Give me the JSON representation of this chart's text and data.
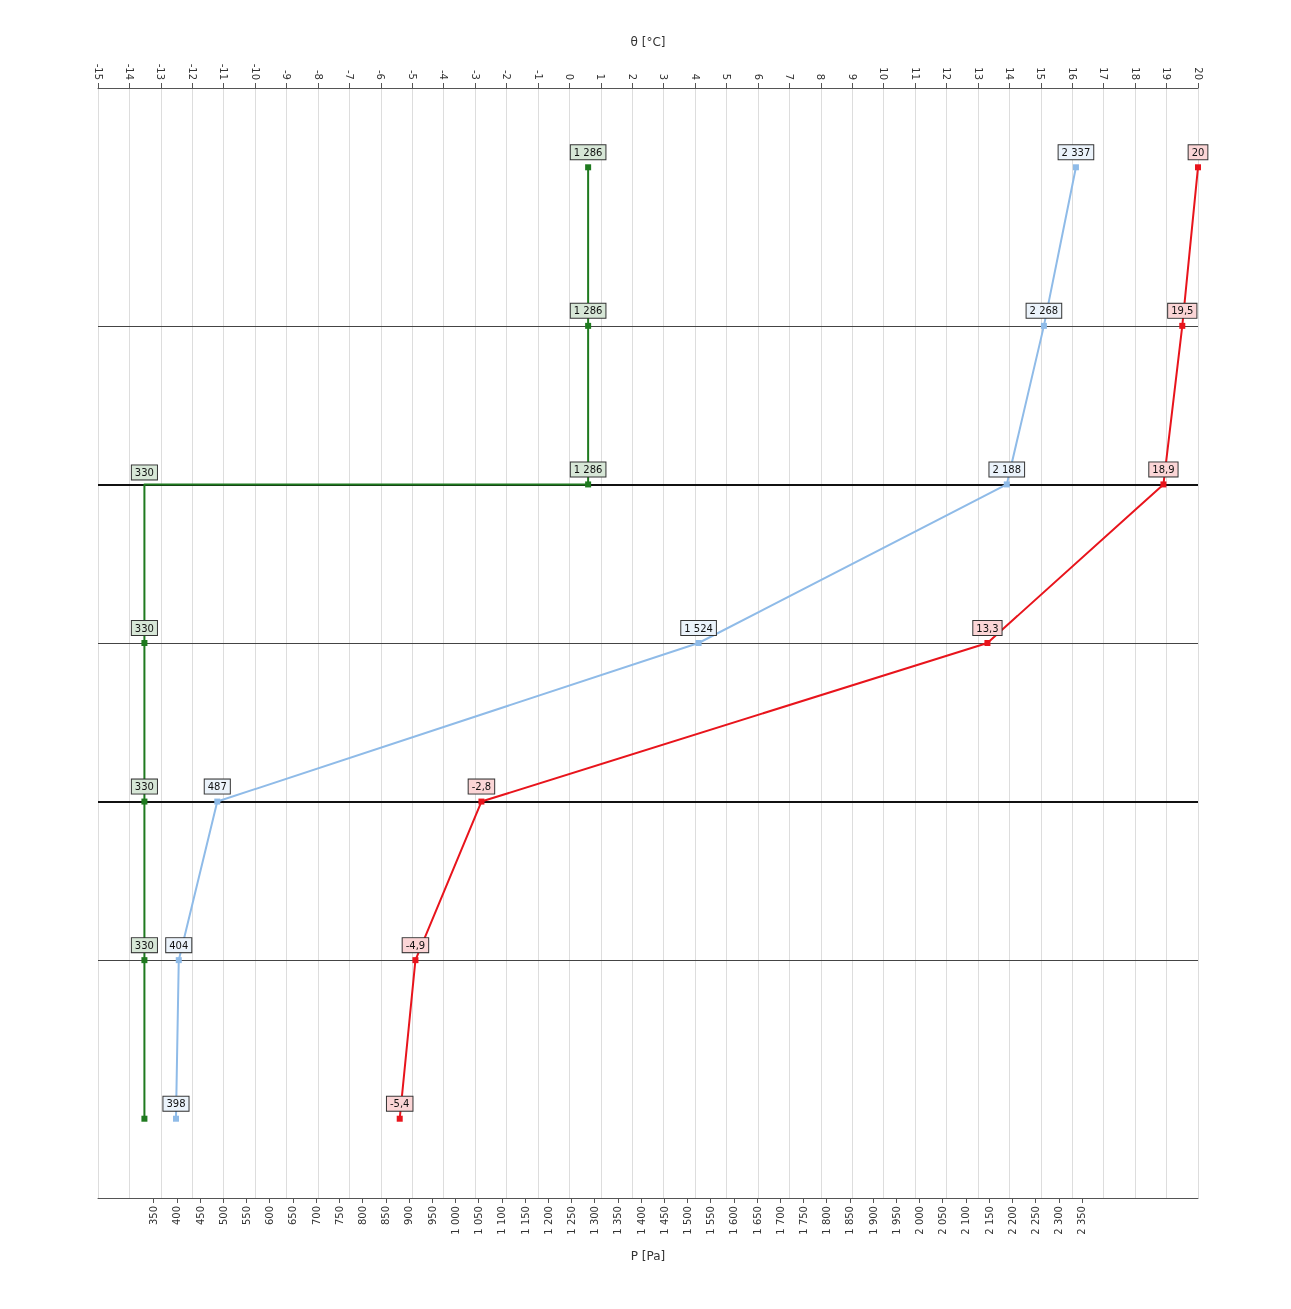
{
  "chart_data": {
    "type": "line",
    "orientation": "horizontal",
    "xlabel": "P [Pa]",
    "x2label": "θ [°C]",
    "categories": [
      null,
      null,
      null,
      null,
      null,
      null,
      null
    ],
    "xlim": [
      230,
      2600
    ],
    "xticks": [
      350,
      400,
      450,
      500,
      550,
      600,
      650,
      700,
      750,
      800,
      850,
      900,
      950,
      {
        "value": 1000,
        "label": "1 000"
      },
      {
        "value": 1050,
        "label": "1 050"
      },
      {
        "value": 1100,
        "label": "1 100"
      },
      {
        "value": 1150,
        "label": "1 150"
      },
      {
        "value": 1200,
        "label": "1 200"
      },
      {
        "value": 1250,
        "label": "1 250"
      },
      {
        "value": 1300,
        "label": "1 300"
      },
      {
        "value": 1350,
        "label": "1 350"
      },
      {
        "value": 1400,
        "label": "1 400"
      },
      {
        "value": 1450,
        "label": "1 450"
      },
      {
        "value": 1500,
        "label": "1 500"
      },
      {
        "value": 1550,
        "label": "1 550"
      },
      {
        "value": 1600,
        "label": "1 600"
      },
      {
        "value": 1650,
        "label": "1 650"
      },
      {
        "value": 1700,
        "label": "1 700"
      },
      {
        "value": 1750,
        "label": "1 750"
      },
      {
        "value": 1800,
        "label": "1 800"
      },
      {
        "value": 1850,
        "label": "1 850"
      },
      {
        "value": 1900,
        "label": "1 900"
      },
      {
        "value": 1950,
        "label": "1 950"
      },
      {
        "value": 2000,
        "label": "2 000"
      },
      {
        "value": 2050,
        "label": "2 050"
      },
      {
        "value": 2100,
        "label": "2 100"
      },
      {
        "value": 2150,
        "label": "2 150"
      },
      {
        "value": 2200,
        "label": "2 200"
      },
      {
        "value": 2250,
        "label": "2 250"
      },
      {
        "value": 2300,
        "label": "2 300"
      },
      {
        "value": 2350,
        "label": "2 350"
      }
    ],
    "x2lim": [
      -15,
      20
    ],
    "x2ticks": [
      -15,
      -14,
      -13,
      -12,
      -11,
      -10,
      -9,
      -8,
      -7,
      -6,
      -5,
      -4,
      -3,
      -2,
      -1,
      0,
      1,
      2,
      3,
      4,
      5,
      6,
      7,
      8,
      9,
      10,
      11,
      12,
      13,
      14,
      15,
      16,
      17,
      18,
      19,
      20
    ],
    "grid": "x2",
    "marker": "square",
    "line_style": "solid",
    "annotations": [
      {
        "text": "330",
        "x": 330
      }
    ],
    "series": [
      {
        "color": "#e8141c",
        "axis": "x2",
        "values": [
          20,
          19.5,
          18.9,
          13.3,
          -2.8,
          -4.9,
          -5.4
        ],
        "value_labels": [
          "20",
          "19,5",
          "18,9",
          "13,3",
          "-2,8",
          "-4,9",
          "-5,4"
        ]
      },
      {
        "color": "#8fbbe8",
        "values": [
          2337,
          2268,
          2188,
          1524,
          487,
          404,
          398
        ],
        "value_labels": [
          "2 337",
          "2 268",
          "2 188",
          "1 524",
          "487",
          "404",
          "398"
        ]
      },
      {
        "color": "#1f7a1f",
        "type": "step",
        "values": [
          1286,
          1286,
          1286,
          330,
          330,
          330,
          330
        ],
        "value_labels": [
          "1 286",
          "1 286",
          "1 286",
          "330",
          "330",
          "330",
          null
        ]
      }
    ]
  }
}
